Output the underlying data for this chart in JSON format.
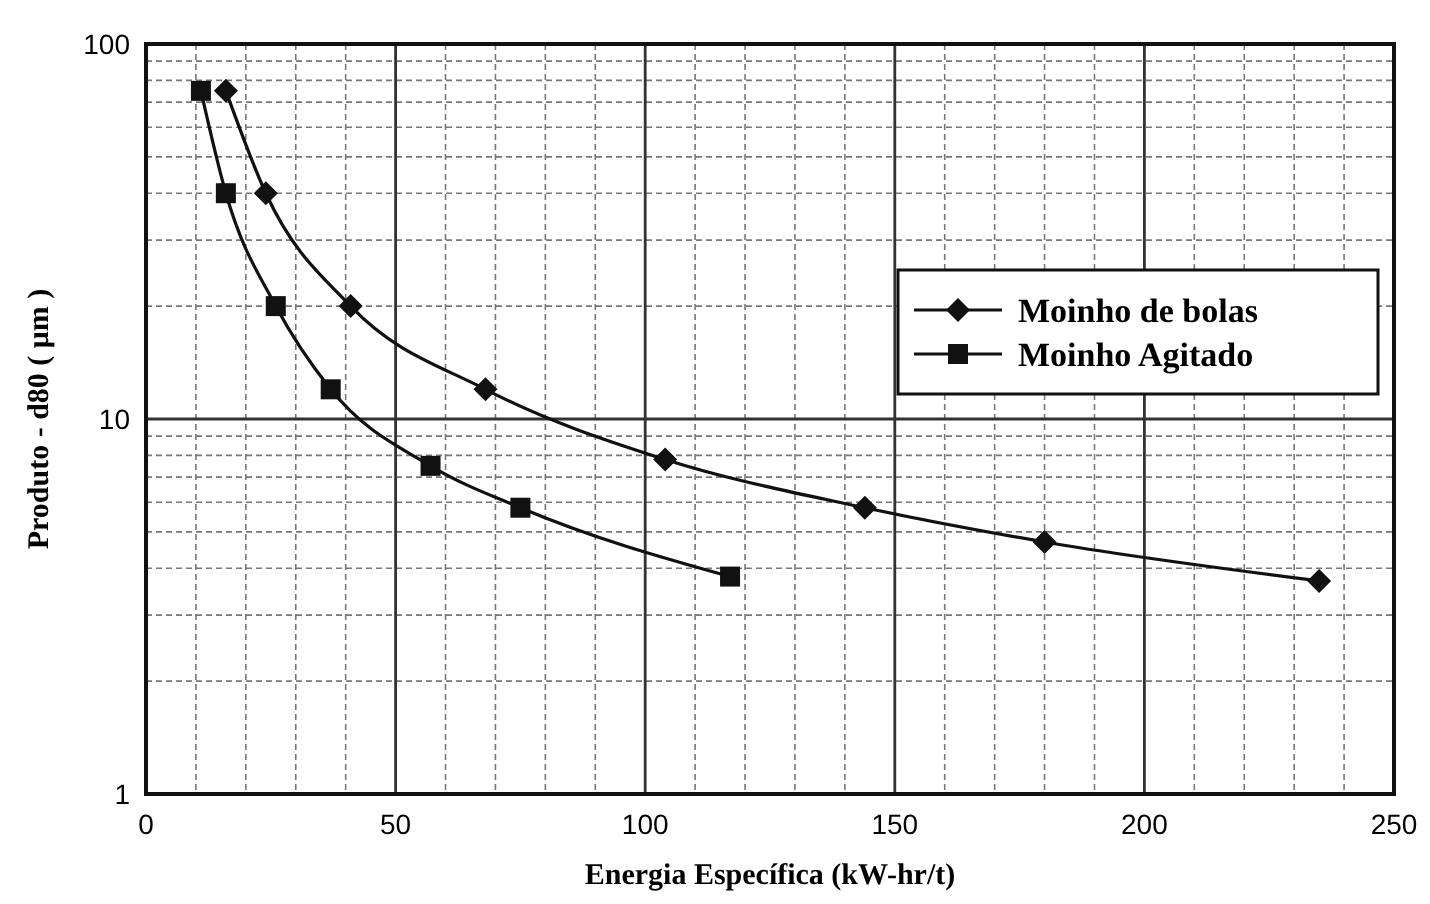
{
  "chart_data": {
    "type": "line",
    "xlabel": "Energia Específica (kW-hr/t)",
    "ylabel": "Produto - d80 ( μm )",
    "xlim": [
      0,
      250
    ],
    "xticks": [
      0,
      50,
      100,
      150,
      200,
      250
    ],
    "ylim": [
      1,
      100
    ],
    "yticks": [
      1,
      10,
      100
    ],
    "log": "y",
    "grid": true,
    "legend": "top right",
    "line_style": "solid",
    "series": [
      {
        "name": "Moinho de bolas",
        "color": "#111111",
        "marker": "diamond",
        "x": [
          16,
          24,
          41,
          68,
          104,
          144,
          180,
          235
        ],
        "values": [
          75,
          40,
          20,
          12,
          7.8,
          5.8,
          4.7,
          3.7
        ]
      },
      {
        "name": "Moinho Agitado",
        "color": "#111111",
        "marker": "square",
        "x": [
          11,
          16,
          26,
          37,
          57,
          75,
          117
        ],
        "values": [
          75,
          40,
          20,
          12,
          7.5,
          5.8,
          3.8
        ]
      }
    ]
  }
}
